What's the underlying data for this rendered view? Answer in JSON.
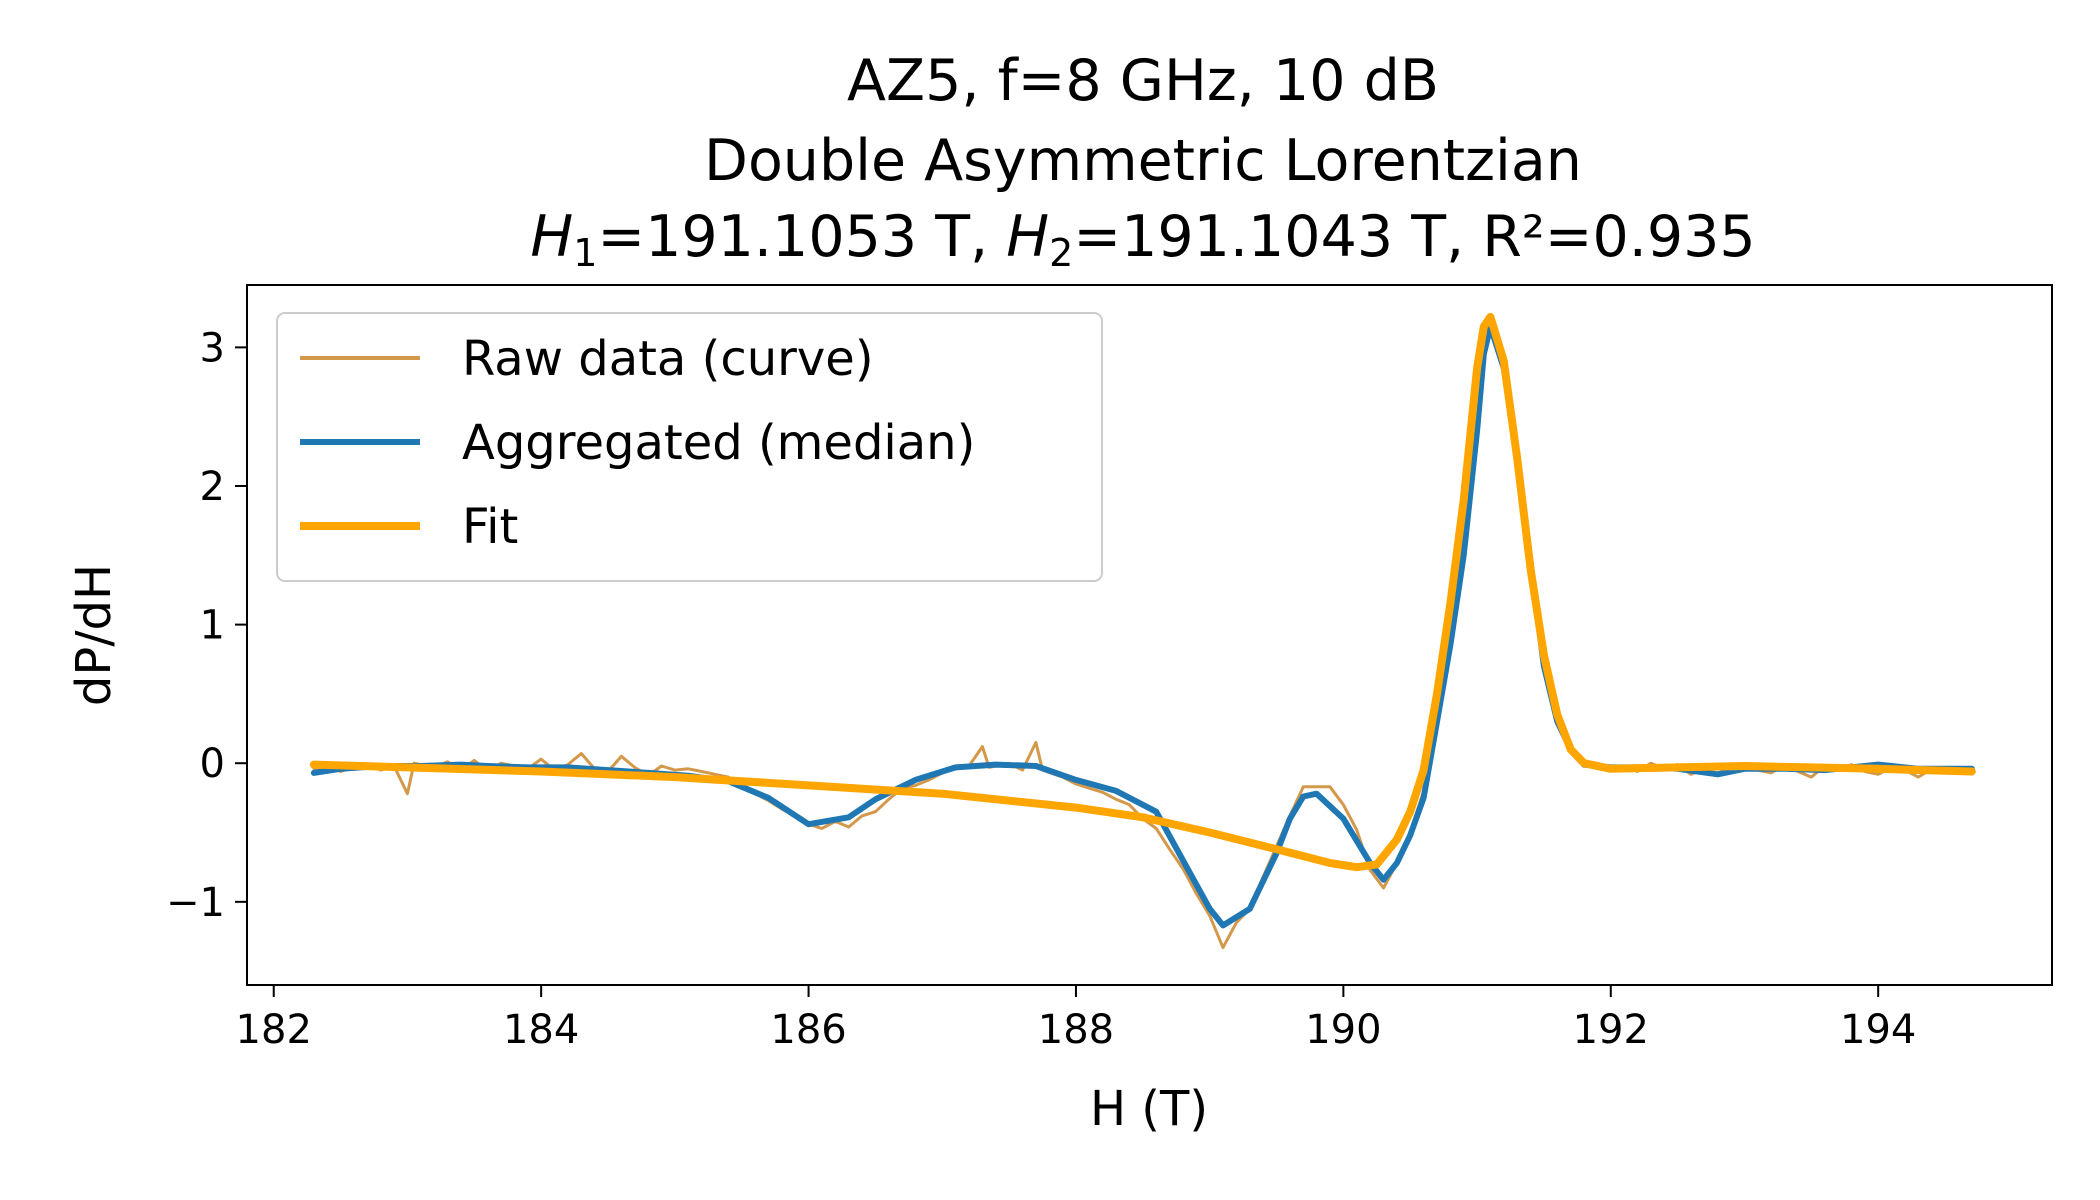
{
  "chart_data": {
    "type": "line",
    "title_lines": [
      "AZ5, f=8 GHz, 10 dB",
      "Double Asymmetric Lorentzian",
      "H₁=191.1053 T, H₂=191.1043 T, R²=0.935"
    ],
    "title_parts": {
      "h1_symbol": "H",
      "h1_sub": "1",
      "h1_value": "=191.1053 T, ",
      "h2_symbol": "H",
      "h2_sub": "2",
      "h2_value": "=191.1043 T, R²=0.935"
    },
    "xlabel": "H (T)",
    "ylabel": "dP/dH",
    "xlim": [
      181.8,
      195.3
    ],
    "ylim": [
      -1.6,
      3.45
    ],
    "xticks": [
      182,
      184,
      186,
      188,
      190,
      192,
      194
    ],
    "yticks": [
      -1,
      0,
      1,
      2,
      3
    ],
    "ytick_labels": [
      "−1",
      "0",
      "1",
      "2",
      "3"
    ],
    "grid": false,
    "legend_position": "upper-left",
    "series": [
      {
        "name": "Raw data (curve)",
        "color": "#d4984a",
        "points": [
          [
            182.3,
            -0.04
          ],
          [
            182.4,
            -0.02
          ],
          [
            182.5,
            -0.06
          ],
          [
            182.6,
            -0.03
          ],
          [
            182.7,
            -0.01
          ],
          [
            182.8,
            -0.05
          ],
          [
            182.9,
            -0.02
          ],
          [
            183.0,
            -0.22
          ],
          [
            183.05,
            0.0
          ],
          [
            183.2,
            -0.03
          ],
          [
            183.3,
            0.01
          ],
          [
            183.4,
            -0.05
          ],
          [
            183.5,
            0.02
          ],
          [
            183.6,
            -0.06
          ],
          [
            183.7,
            0.0
          ],
          [
            183.8,
            -0.02
          ],
          [
            183.9,
            -0.04
          ],
          [
            184.0,
            0.03
          ],
          [
            184.1,
            -0.05
          ],
          [
            184.2,
            -0.01
          ],
          [
            184.3,
            0.07
          ],
          [
            184.4,
            -0.04
          ],
          [
            184.5,
            -0.06
          ],
          [
            184.6,
            0.05
          ],
          [
            184.7,
            -0.03
          ],
          [
            184.8,
            -0.09
          ],
          [
            184.9,
            -0.02
          ],
          [
            185.0,
            -0.05
          ],
          [
            185.1,
            -0.04
          ],
          [
            185.2,
            -0.06
          ],
          [
            185.3,
            -0.08
          ],
          [
            185.4,
            -0.1
          ],
          [
            185.5,
            -0.15
          ],
          [
            185.6,
            -0.22
          ],
          [
            185.7,
            -0.27
          ],
          [
            185.8,
            -0.33
          ],
          [
            185.9,
            -0.38
          ],
          [
            186.0,
            -0.44
          ],
          [
            186.1,
            -0.47
          ],
          [
            186.2,
            -0.42
          ],
          [
            186.3,
            -0.46
          ],
          [
            186.4,
            -0.38
          ],
          [
            186.5,
            -0.35
          ],
          [
            186.6,
            -0.26
          ],
          [
            186.7,
            -0.18
          ],
          [
            186.8,
            -0.16
          ],
          [
            186.9,
            -0.12
          ],
          [
            187.0,
            -0.07
          ],
          [
            187.1,
            -0.03
          ],
          [
            187.2,
            -0.02
          ],
          [
            187.3,
            0.12
          ],
          [
            187.35,
            -0.03
          ],
          [
            187.5,
            0.0
          ],
          [
            187.6,
            -0.05
          ],
          [
            187.7,
            0.15
          ],
          [
            187.75,
            -0.05
          ],
          [
            187.9,
            -0.1
          ],
          [
            188.0,
            -0.15
          ],
          [
            188.1,
            -0.18
          ],
          [
            188.2,
            -0.21
          ],
          [
            188.3,
            -0.26
          ],
          [
            188.4,
            -0.3
          ],
          [
            188.5,
            -0.4
          ],
          [
            188.6,
            -0.47
          ],
          [
            188.7,
            -0.62
          ],
          [
            188.8,
            -0.76
          ],
          [
            188.9,
            -0.94
          ],
          [
            189.0,
            -1.1
          ],
          [
            189.1,
            -1.33
          ],
          [
            189.2,
            -1.15
          ],
          [
            189.3,
            -1.05
          ],
          [
            189.4,
            -0.82
          ],
          [
            189.5,
            -0.6
          ],
          [
            189.6,
            -0.38
          ],
          [
            189.7,
            -0.17
          ],
          [
            189.8,
            -0.17
          ],
          [
            189.9,
            -0.17
          ],
          [
            190.0,
            -0.3
          ],
          [
            190.1,
            -0.48
          ],
          [
            190.2,
            -0.77
          ],
          [
            190.3,
            -0.9
          ],
          [
            190.4,
            -0.72
          ],
          [
            190.5,
            -0.5
          ],
          [
            190.6,
            -0.2
          ],
          [
            190.7,
            0.4
          ],
          [
            190.8,
            1.0
          ],
          [
            190.9,
            1.7
          ],
          [
            191.0,
            2.7
          ],
          [
            191.05,
            3.15
          ],
          [
            191.1,
            3.22
          ],
          [
            191.2,
            2.9
          ],
          [
            191.3,
            2.3
          ],
          [
            191.4,
            1.5
          ],
          [
            191.5,
            0.7
          ],
          [
            191.6,
            0.32
          ],
          [
            191.7,
            0.1
          ],
          [
            191.8,
            0.02
          ],
          [
            191.9,
            -0.03
          ],
          [
            192.0,
            -0.05
          ],
          [
            192.1,
            -0.02
          ],
          [
            192.2,
            -0.06
          ],
          [
            192.3,
            0.0
          ],
          [
            192.4,
            -0.04
          ],
          [
            192.5,
            -0.01
          ],
          [
            192.6,
            -0.08
          ],
          [
            192.7,
            -0.04
          ],
          [
            192.8,
            -0.02
          ],
          [
            192.9,
            -0.06
          ],
          [
            193.0,
            -0.03
          ],
          [
            193.1,
            -0.05
          ],
          [
            193.2,
            -0.07
          ],
          [
            193.3,
            -0.01
          ],
          [
            193.4,
            -0.06
          ],
          [
            193.5,
            -0.1
          ],
          [
            193.6,
            -0.02
          ],
          [
            193.7,
            -0.05
          ],
          [
            193.8,
            -0.01
          ],
          [
            193.9,
            -0.06
          ],
          [
            194.0,
            -0.08
          ],
          [
            194.1,
            -0.03
          ],
          [
            194.2,
            -0.05
          ],
          [
            194.3,
            -0.1
          ],
          [
            194.4,
            -0.04
          ],
          [
            194.5,
            -0.06
          ],
          [
            194.6,
            -0.03
          ],
          [
            194.7,
            -0.06
          ]
        ]
      },
      {
        "name": "Aggregated (median)",
        "color": "#1f77b4",
        "points": [
          [
            182.3,
            -0.07
          ],
          [
            182.5,
            -0.04
          ],
          [
            182.8,
            -0.02
          ],
          [
            183.1,
            -0.02
          ],
          [
            183.4,
            -0.01
          ],
          [
            183.6,
            -0.02
          ],
          [
            183.9,
            -0.03
          ],
          [
            184.2,
            -0.03
          ],
          [
            184.5,
            -0.05
          ],
          [
            184.8,
            -0.07
          ],
          [
            185.1,
            -0.09
          ],
          [
            185.4,
            -0.13
          ],
          [
            185.7,
            -0.25
          ],
          [
            186.0,
            -0.44
          ],
          [
            186.3,
            -0.39
          ],
          [
            186.5,
            -0.26
          ],
          [
            186.8,
            -0.12
          ],
          [
            187.1,
            -0.03
          ],
          [
            187.4,
            -0.01
          ],
          [
            187.7,
            -0.02
          ],
          [
            188.0,
            -0.12
          ],
          [
            188.3,
            -0.2
          ],
          [
            188.6,
            -0.35
          ],
          [
            188.8,
            -0.7
          ],
          [
            189.0,
            -1.05
          ],
          [
            189.1,
            -1.17
          ],
          [
            189.3,
            -1.05
          ],
          [
            189.5,
            -0.65
          ],
          [
            189.6,
            -0.4
          ],
          [
            189.7,
            -0.24
          ],
          [
            189.8,
            -0.22
          ],
          [
            190.0,
            -0.4
          ],
          [
            190.2,
            -0.72
          ],
          [
            190.3,
            -0.84
          ],
          [
            190.4,
            -0.72
          ],
          [
            190.5,
            -0.52
          ],
          [
            190.6,
            -0.25
          ],
          [
            190.7,
            0.3
          ],
          [
            190.8,
            0.85
          ],
          [
            190.9,
            1.5
          ],
          [
            191.0,
            2.4
          ],
          [
            191.05,
            2.95
          ],
          [
            191.1,
            3.15
          ],
          [
            191.2,
            2.85
          ],
          [
            191.3,
            2.2
          ],
          [
            191.4,
            1.45
          ],
          [
            191.5,
            0.7
          ],
          [
            191.6,
            0.3
          ],
          [
            191.7,
            0.1
          ],
          [
            191.8,
            -0.01
          ],
          [
            192.0,
            -0.03
          ],
          [
            192.3,
            -0.03
          ],
          [
            192.5,
            -0.04
          ],
          [
            192.8,
            -0.08
          ],
          [
            193.0,
            -0.04
          ],
          [
            193.3,
            -0.04
          ],
          [
            193.6,
            -0.05
          ],
          [
            194.0,
            -0.01
          ],
          [
            194.3,
            -0.04
          ],
          [
            194.7,
            -0.04
          ]
        ]
      },
      {
        "name": "Fit",
        "color": "#ffa500",
        "points": [
          [
            182.3,
            -0.01
          ],
          [
            183.0,
            -0.03
          ],
          [
            184.0,
            -0.06
          ],
          [
            185.0,
            -0.1
          ],
          [
            186.0,
            -0.16
          ],
          [
            187.0,
            -0.22
          ],
          [
            188.0,
            -0.32
          ],
          [
            188.5,
            -0.39
          ],
          [
            189.0,
            -0.5
          ],
          [
            189.5,
            -0.62
          ],
          [
            189.9,
            -0.72
          ],
          [
            190.1,
            -0.75
          ],
          [
            190.25,
            -0.73
          ],
          [
            190.4,
            -0.55
          ],
          [
            190.5,
            -0.35
          ],
          [
            190.6,
            -0.05
          ],
          [
            190.7,
            0.5
          ],
          [
            190.8,
            1.15
          ],
          [
            190.9,
            1.9
          ],
          [
            191.0,
            2.85
          ],
          [
            191.05,
            3.15
          ],
          [
            191.1,
            3.22
          ],
          [
            191.2,
            2.9
          ],
          [
            191.3,
            2.2
          ],
          [
            191.4,
            1.4
          ],
          [
            191.5,
            0.78
          ],
          [
            191.6,
            0.35
          ],
          [
            191.7,
            0.1
          ],
          [
            191.8,
            0.0
          ],
          [
            192.0,
            -0.04
          ],
          [
            192.5,
            -0.03
          ],
          [
            193.0,
            -0.02
          ],
          [
            193.5,
            -0.03
          ],
          [
            194.0,
            -0.04
          ],
          [
            194.7,
            -0.06
          ]
        ]
      }
    ]
  }
}
